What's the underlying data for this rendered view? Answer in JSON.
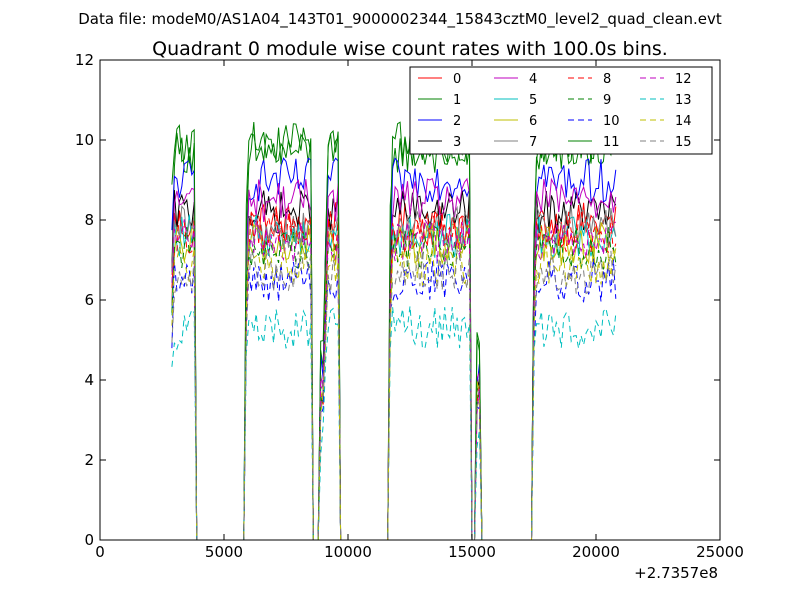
{
  "chart_data": {
    "type": "line",
    "header": "Data file: modeM0/AS1A04_143T01_9000002344_15843cztM0_level2_quad_clean.evt",
    "title": "Quadrant 0 module wise count rates with 100.0s bins.",
    "xlabel": "",
    "ylabel": "",
    "x_offset_label": "+2.7357e8",
    "xlim": [
      0,
      25000
    ],
    "ylim": [
      0,
      12
    ],
    "x_ticks": [
      0,
      5000,
      10000,
      15000,
      20000,
      25000
    ],
    "x_tick_labels": [
      "0",
      "5000",
      "10000",
      "15000",
      "20000",
      "25000"
    ],
    "y_ticks": [
      0,
      2,
      4,
      6,
      8,
      10,
      12
    ],
    "y_tick_labels": [
      "0",
      "2",
      "4",
      "6",
      "8",
      "10",
      "12"
    ],
    "grid": false,
    "legend_position": "top-right",
    "legend_columns": 4,
    "segments": [
      {
        "start": 2900,
        "end": 3800
      },
      {
        "start": 5900,
        "end": 8500
      },
      {
        "start": 8900,
        "end": 9000
      },
      {
        "start": 9100,
        "end": 9600
      },
      {
        "start": 11700,
        "end": 14900
      },
      {
        "start": 15200,
        "end": 15300
      },
      {
        "start": 17500,
        "end": 20800
      }
    ],
    "series": [
      {
        "name": "0",
        "color": "#ff0000",
        "dash": "solid",
        "level": 7.9
      },
      {
        "name": "1",
        "color": "#008000",
        "dash": "solid",
        "level": 9.7
      },
      {
        "name": "2",
        "color": "#0000ff",
        "dash": "solid",
        "level": 9.0
      },
      {
        "name": "3",
        "color": "#000000",
        "dash": "solid",
        "level": 8.2
      },
      {
        "name": "4",
        "color": "#bf00bf",
        "dash": "solid",
        "level": 8.5
      },
      {
        "name": "5",
        "color": "#00bfbf",
        "dash": "solid",
        "level": 7.6
      },
      {
        "name": "6",
        "color": "#bfbf00",
        "dash": "solid",
        "level": 7.4
      },
      {
        "name": "7",
        "color": "#808080",
        "dash": "solid",
        "level": 7.8
      },
      {
        "name": "8",
        "color": "#ff0000",
        "dash": "dashed",
        "level": 7.7
      },
      {
        "name": "9",
        "color": "#008000",
        "dash": "dashed",
        "level": 7.3
      },
      {
        "name": "10",
        "color": "#0000ff",
        "dash": "dashed",
        "level": 6.5
      },
      {
        "name": "11",
        "color": "#008000",
        "dash": "solid",
        "level": 9.9
      },
      {
        "name": "12",
        "color": "#bf00bf",
        "dash": "dashed",
        "level": 7.5
      },
      {
        "name": "13",
        "color": "#00bfbf",
        "dash": "dashed",
        "level": 5.3
      },
      {
        "name": "14",
        "color": "#bfbf00",
        "dash": "dashed",
        "level": 6.9
      },
      {
        "name": "15",
        "color": "#808080",
        "dash": "dashed",
        "level": 6.7
      }
    ]
  }
}
